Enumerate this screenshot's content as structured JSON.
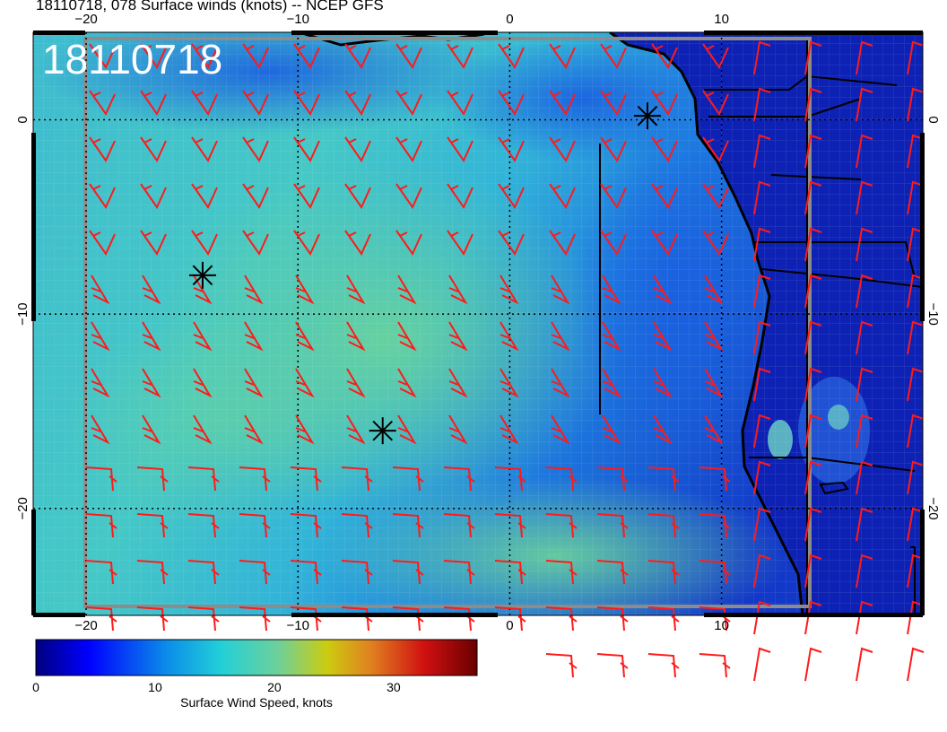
{
  "title": "18110718, 078 Surface winds (knots) -- NCEP GFS",
  "stamp": "18110718",
  "map": {
    "lon_range": [
      -22.5,
      19.5
    ],
    "lat_range": [
      -25.5,
      4.5
    ],
    "lon_ticks": [
      {
        "value": -20,
        "label": "−20"
      },
      {
        "value": -10,
        "label": "−10"
      },
      {
        "value": 0,
        "label": "0"
      },
      {
        "value": 10,
        "label": "10"
      }
    ],
    "lat_ticks": [
      {
        "value": 0,
        "label": "0"
      },
      {
        "value": -10,
        "label": "−10"
      },
      {
        "value": -20,
        "label": "−20"
      }
    ],
    "markers": [
      {
        "name": "asterisk-marker-1",
        "lon": -14.5,
        "lat": -8.0
      },
      {
        "name": "asterisk-marker-2",
        "lon": -6.0,
        "lat": -16.0
      },
      {
        "name": "asterisk-marker-3",
        "lon": 6.5,
        "lat": 0.2
      }
    ],
    "colors": {
      "ocean_low": "#1a4fd6",
      "ocean_mid": "#22b6d6",
      "ocean_high": "#55d0a8",
      "land": "#0a1ea8",
      "barb": "#ff1a1a"
    }
  },
  "colorbar": {
    "label": "Surface Wind Speed, knots",
    "range": [
      0,
      37
    ],
    "ticks": [
      {
        "value": 0,
        "label": "0"
      },
      {
        "value": 10,
        "label": "10"
      },
      {
        "value": 20,
        "label": "20"
      },
      {
        "value": 30,
        "label": "30"
      }
    ]
  }
}
